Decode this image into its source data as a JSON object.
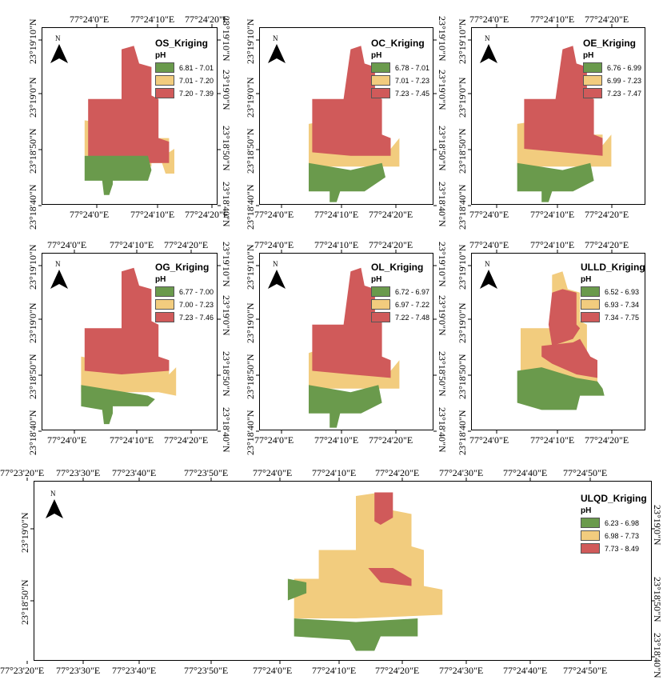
{
  "colors": {
    "low": "#6a9a4c",
    "mid": "#f2cc7e",
    "high": "#d05a5a",
    "frame": "#000000"
  },
  "north_label": "N",
  "north_arrow_icon": "north-arrow-icon",
  "panels": [
    {
      "id": "os",
      "title": "OS_Kriging",
      "unit": "pH",
      "legend": [
        "6.81 - 7.01",
        "7.01 - 7.20",
        "7.20 - 7.39"
      ],
      "top_ticks": [
        "77°24'0\"E",
        "77°24'10\"E",
        "77°24'20\"E"
      ],
      "bottom_ticks": [
        "77°24'0\"E",
        "77°24'10\"E",
        "77°24'20\"E"
      ],
      "left_ticks": [
        "23°18'40\"N",
        "23°18'50\"N",
        "23°19'0\"N",
        "23°19'10\"N"
      ],
      "right_ticks": [
        "23°19'10\"N",
        "23°19'0\"N",
        "23°18'50\"N",
        "23°18'40\"N"
      ]
    },
    {
      "id": "oc",
      "title": "OC_Kriging",
      "unit": "pH",
      "legend": [
        "6.78 - 7.01",
        "7.01 - 7.23",
        "7.23 - 7.45"
      ],
      "top_ticks": [],
      "bottom_ticks": [
        "77°24'0\"E",
        "77°24'10\"E",
        "77°24'20\"E"
      ],
      "left_ticks": [
        "23°18'40\"N",
        "23°18'50\"N",
        "23°19'0\"N",
        "23°19'10\"N"
      ],
      "right_ticks": [
        "23°19'10\"N",
        "23°19'0\"N",
        "23°18'50\"N",
        "23°18'40\"N"
      ]
    },
    {
      "id": "oe",
      "title": "OE_Kriging",
      "unit": "pH",
      "legend": [
        "6.76 - 6.99",
        "6.99 - 7.23",
        "7.23 - 7.47"
      ],
      "top_ticks": [
        "77°24'0\"E",
        "77°24'10\"E",
        "77°24'20\"E"
      ],
      "bottom_ticks": [
        "77°24'0\"E",
        "77°24'10\"E",
        "77°24'20\"E"
      ],
      "left_ticks": [
        "23°18'40\"N",
        "23°18'50\"N",
        "23°19'0\"N",
        "23°19'10\"N"
      ],
      "right_ticks": []
    },
    {
      "id": "og",
      "title": "OG_Kriging",
      "unit": "pH",
      "legend": [
        "6.77 - 7.00",
        "7.00 - 7.23",
        "7.23 - 7.46"
      ],
      "top_ticks": [
        "77°24'0\"E",
        "77°24'10\"E",
        "77°24'20\"E"
      ],
      "bottom_ticks": [
        "77°24'0\"E",
        "77°24'10\"E",
        "77°24'20\"E"
      ],
      "left_ticks": [
        "23°18'40\"N",
        "23°18'50\"N",
        "23°19'0\"N",
        "23°19'10\"N"
      ],
      "right_ticks": [
        "23°19'10\"N",
        "23°19'0\"N",
        "23°18'50\"N",
        "23°18'40\"N"
      ]
    },
    {
      "id": "ol",
      "title": "OL_Kriging",
      "unit": "pH",
      "legend": [
        "6.72 - 6.97",
        "6.97 - 7.22",
        "7.22 - 7.48"
      ],
      "top_ticks": [
        "77°24'0\"E",
        "77°24'10\"E",
        "77°24'20\"E"
      ],
      "bottom_ticks": [
        "77°24'0\"E",
        "77°24'10\"E",
        "77°24'20\"E"
      ],
      "left_ticks": [
        "23°18'40\"N",
        "23°18'50\"N",
        "23°19'0\"N",
        "23°19'10\"N"
      ],
      "right_ticks": [
        "23°19'10\"N",
        "23°19'0\"N",
        "23°18'50\"N",
        "23°18'40\"N"
      ]
    },
    {
      "id": "ulld",
      "title": "ULLD_Kriging",
      "unit": "pH",
      "legend": [
        "6.52 - 6.93",
        "6.93 - 7.34",
        "7.34 - 7.75"
      ],
      "top_ticks": [
        "77°24'0\"E",
        "77°24'10\"E",
        "77°24'20\"E"
      ],
      "bottom_ticks": [
        "77°24'0\"E",
        "77°24'10\"E",
        "77°24'20\"E"
      ],
      "left_ticks": [
        "23°18'40\"N",
        "23°18'50\"N",
        "23°19'0\"N",
        "23°19'10\"N"
      ],
      "right_ticks": []
    },
    {
      "id": "ulqd",
      "title": "ULQD_Kriging",
      "unit": "pH",
      "legend": [
        "6.23 - 6.98",
        "6.98 - 7.73",
        "7.73 - 8.49"
      ],
      "top_ticks": [
        "77°23'20\"E",
        "77°23'30\"E",
        "77°23'40\"E",
        "77°23'50\"E",
        "77°24'0\"E",
        "77°24'10\"E",
        "77°24'20\"E",
        "77°24'30\"E",
        "77°24'40\"E",
        "77°24'50\"E"
      ],
      "bottom_ticks": [
        "77°23'20\"E",
        "77°23'30\"E",
        "77°23'40\"E",
        "77°23'50\"E",
        "77°24'0\"E",
        "77°24'10\"E",
        "77°24'20\"E",
        "77°24'30\"E",
        "77°24'40\"E",
        "77°24'50\"E"
      ],
      "left_ticks": [
        "23°18'50\"N",
        "23°19'0\"N"
      ],
      "right_ticks": [
        "23°19'0\"N",
        "23°18'50\"N",
        "23°18'40\"N"
      ]
    }
  ]
}
